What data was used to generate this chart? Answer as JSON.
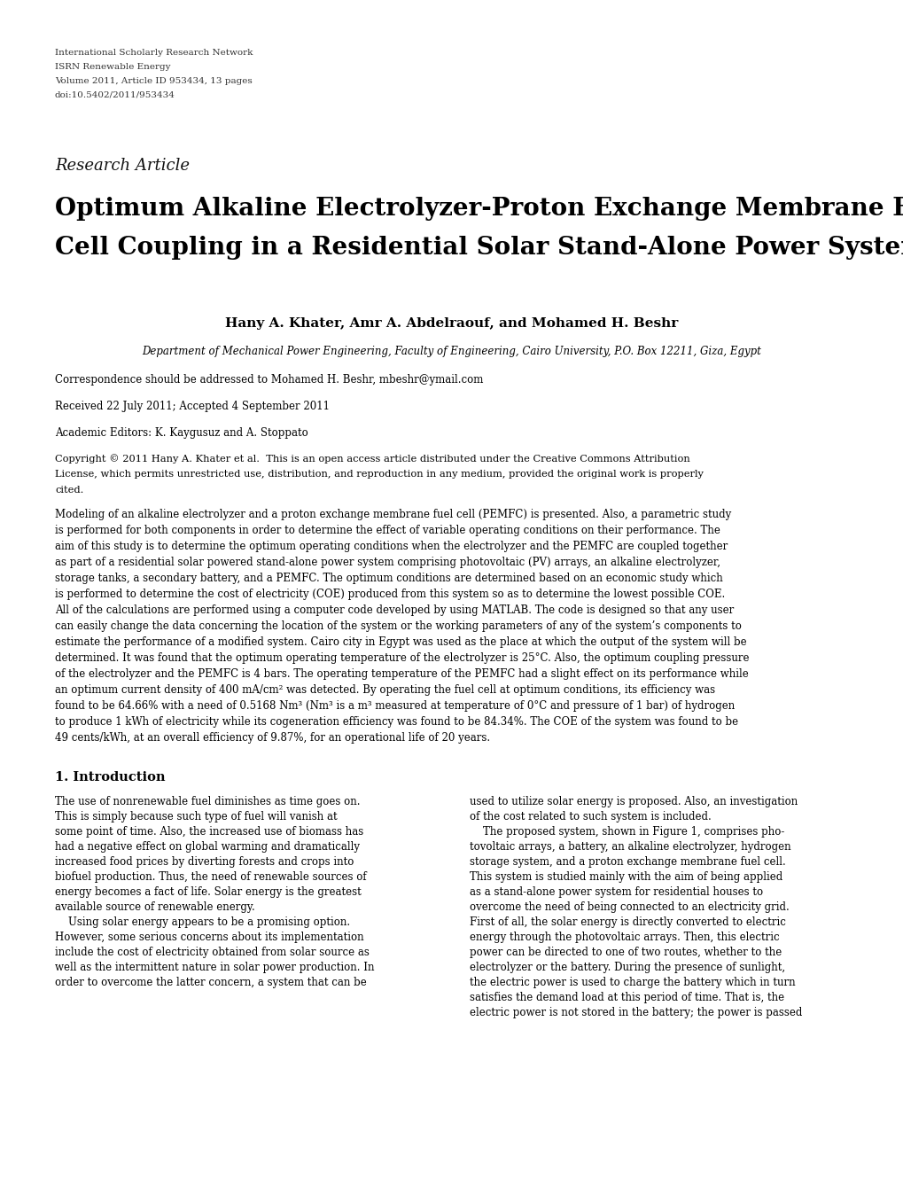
{
  "header_line1": "International Scholarly Research Network",
  "header_line2": "ISRN Renewable Energy",
  "header_line3": "Volume 2011, Article ID 953434, 13 pages",
  "header_line4": "doi:10.5402/2011/953434",
  "research_article_label": "Research Article",
  "title_line1": "Optimum Alkaline Electrolyzer-Proton Exchange Membrane Fuel",
  "title_line2": "Cell Coupling in a Residential Solar Stand-Alone Power System",
  "authors": "Hany A. Khater, Amr A. Abdelraouf, and Mohamed H. Beshr",
  "affiliation": "Department of Mechanical Power Engineering, Faculty of Engineering, Cairo University, P.O. Box 12211, Giza, Egypt",
  "correspondence": "Correspondence should be addressed to Mohamed H. Beshr, mbeshr@ymail.com",
  "received": "Received 22 July 2011; Accepted 4 September 2011",
  "editors": "Academic Editors: K. Kaygusuz and A. Stoppato",
  "copyright_line1": "Copyright © 2011 Hany A. Khater et al.  This is an open access article distributed under the Creative Commons Attribution",
  "copyright_line2": "License, which permits unrestricted use, distribution, and reproduction in any medium, provided the original work is properly",
  "copyright_line3": "cited.",
  "abstract_lines": [
    "Modeling of an alkaline electrolyzer and a proton exchange membrane fuel cell (PEMFC) is presented. Also, a parametric study",
    "is performed for both components in order to determine the effect of variable operating conditions on their performance. The",
    "aim of this study is to determine the optimum operating conditions when the electrolyzer and the PEMFC are coupled together",
    "as part of a residential solar powered stand-alone power system comprising photovoltaic (PV) arrays, an alkaline electrolyzer,",
    "storage tanks, a secondary battery, and a PEMFC. The optimum conditions are determined based on an economic study which",
    "is performed to determine the cost of electricity (COE) produced from this system so as to determine the lowest possible COE.",
    "All of the calculations are performed using a computer code developed by using MATLAB. The code is designed so that any user",
    "can easily change the data concerning the location of the system or the working parameters of any of the system’s components to",
    "estimate the performance of a modified system. Cairo city in Egypt was used as the place at which the output of the system will be",
    "determined. It was found that the optimum operating temperature of the electrolyzer is 25°C. Also, the optimum coupling pressure",
    "of the electrolyzer and the PEMFC is 4 bars. The operating temperature of the PEMFC had a slight effect on its performance while",
    "an optimum current density of 400 mA/cm² was detected. By operating the fuel cell at optimum conditions, its efficiency was",
    "found to be 64.66% with a need of 0.5168 Nm³ (Nm³ is a m³ measured at temperature of 0°C and pressure of 1 bar) of hydrogen",
    "to produce 1 kWh of electricity while its cogeneration efficiency was found to be 84.34%. The COE of the system was found to be",
    "49 cents/kWh, at an overall efficiency of 9.87%, for an operational life of 20 years."
  ],
  "section1_title": "1. Introduction",
  "section1_col1_lines": [
    "The use of nonrenewable fuel diminishes as time goes on.",
    "This is simply because such type of fuel will vanish at",
    "some point of time. Also, the increased use of biomass has",
    "had a negative effect on global warming and dramatically",
    "increased food prices by diverting forests and crops into",
    "biofuel production. Thus, the need of renewable sources of",
    "energy becomes a fact of life. Solar energy is the greatest",
    "available source of renewable energy.",
    "    Using solar energy appears to be a promising option.",
    "However, some serious concerns about its implementation",
    "include the cost of electricity obtained from solar source as",
    "well as the intermittent nature in solar power production. In",
    "order to overcome the latter concern, a system that can be"
  ],
  "section1_col2_lines": [
    "used to utilize solar energy is proposed. Also, an investigation",
    "of the cost related to such system is included.",
    "    The proposed system, shown in Figure 1, comprises pho-",
    "tovoltaic arrays, a battery, an alkaline electrolyzer, hydrogen",
    "storage system, and a proton exchange membrane fuel cell.",
    "This system is studied mainly with the aim of being applied",
    "as a stand-alone power system for residential houses to",
    "overcome the need of being connected to an electricity grid.",
    "First of all, the solar energy is directly converted to electric",
    "energy through the photovoltaic arrays. Then, this electric",
    "power can be directed to one of two routes, whether to the",
    "electrolyzer or the battery. During the presence of sunlight,",
    "the electric power is used to charge the battery which in turn",
    "satisfies the demand load at this period of time. That is, the",
    "electric power is not stored in the battery; the power is passed"
  ],
  "bg_color": "#ffffff",
  "text_color": "#000000"
}
